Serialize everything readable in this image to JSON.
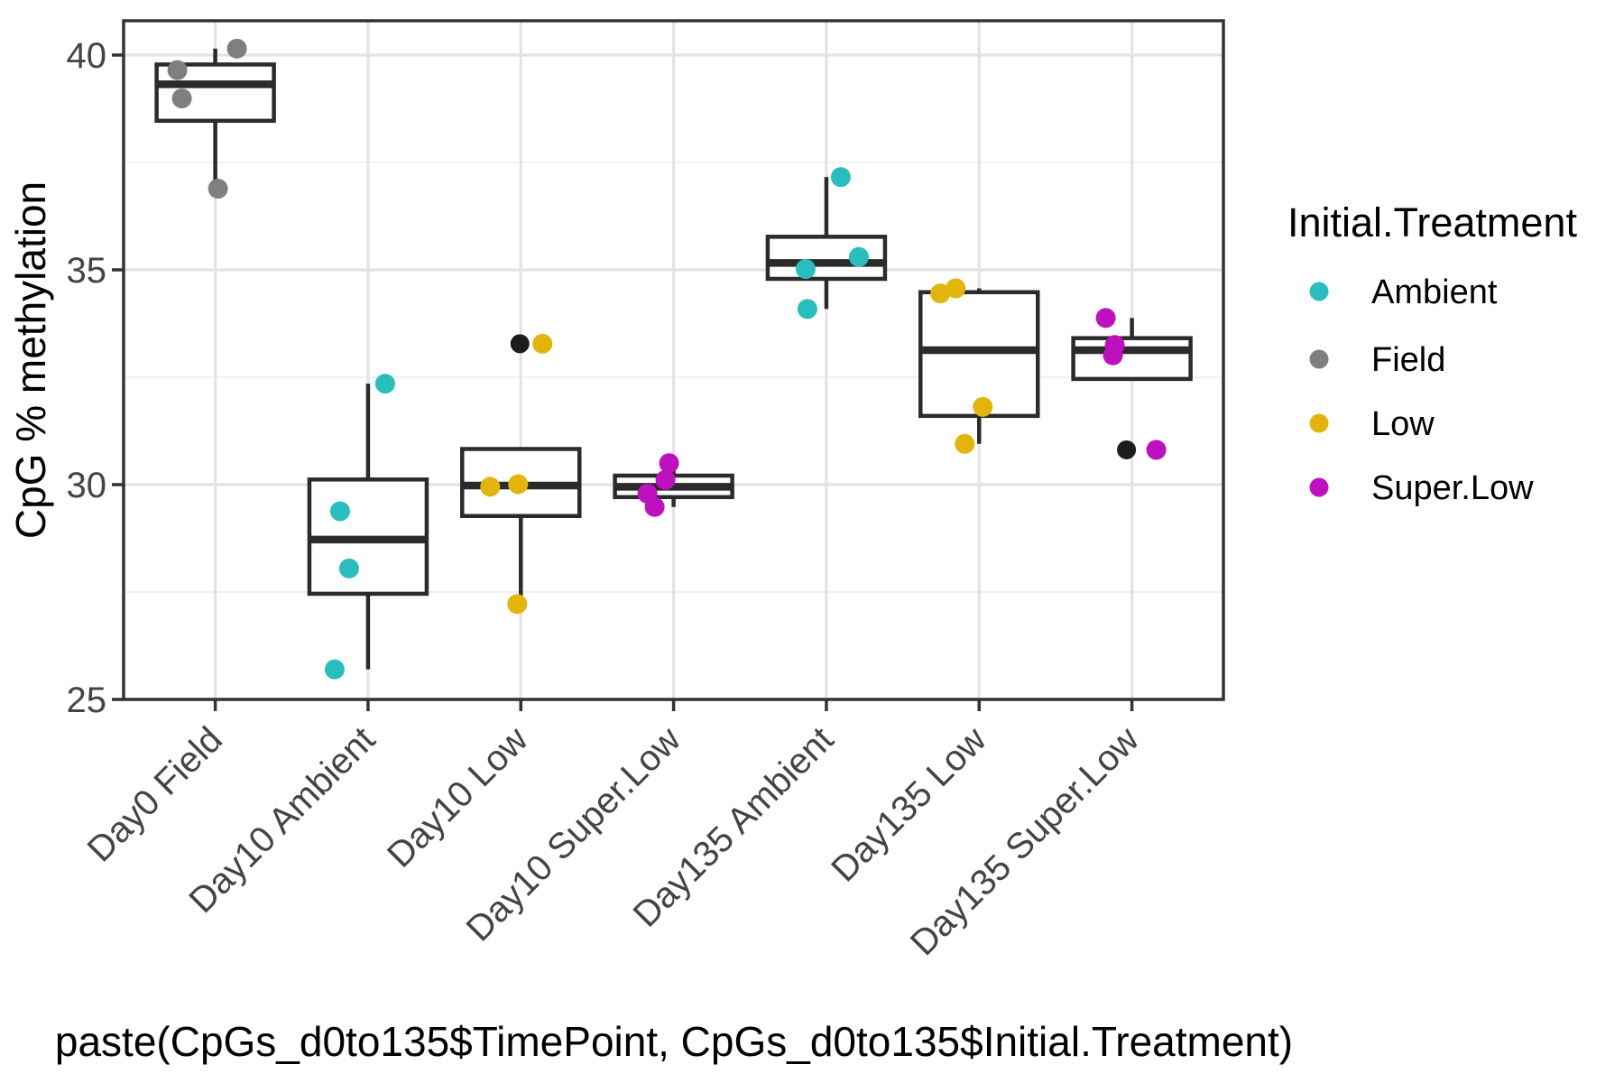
{
  "y_axis": {
    "title": "CpG % methylation",
    "tick_labels": [
      "25",
      "30",
      "35",
      "40"
    ],
    "tick_values": [
      25,
      30,
      35,
      40
    ],
    "minor_values": [
      27.5,
      32.5,
      37.5
    ],
    "range": [
      24.98,
      40.8
    ]
  },
  "x_axis": {
    "title": "paste(CpGs_d0to135$TimePoint, CpGs_d0to135$Initial.Treatment)",
    "categories": [
      "Day0 Field",
      "Day10 Ambient",
      "Day10 Low",
      "Day10 Super.Low",
      "Day135 Ambient",
      "Day135 Low",
      "Day135 Super.Low"
    ]
  },
  "legend": {
    "title": "Initial.Treatment",
    "entries": [
      {
        "label": "Ambient",
        "color": "#29BEBE"
      },
      {
        "label": "Field",
        "color": "#7F7F7F"
      },
      {
        "label": "Low",
        "color": "#E3B50C"
      },
      {
        "label": "Super.Low",
        "color": "#BF10BF"
      }
    ]
  },
  "colors": {
    "Ambient": "#29BEBE",
    "Field": "#7F7F7F",
    "Low": "#E3B50C",
    "Super.Low": "#BF10BF",
    "outlier": "#1C1C1C",
    "box_stroke": "#2B2B2B",
    "grid_major": "#E3E3E3",
    "grid_minor": "#EFEFEF",
    "panel_border": "#333333"
  },
  "chart_data": {
    "type": "boxplot",
    "title": "",
    "xlabel": "paste(CpGs_d0to135$TimePoint, CpGs_d0to135$Initial.Treatment)",
    "ylabel": "CpG % methylation",
    "ylim": [
      24.98,
      40.8
    ],
    "grid": true,
    "legend_position": "right",
    "categories": [
      "Day0 Field",
      "Day10 Ambient",
      "Day10 Low",
      "Day10 Super.Low",
      "Day135 Ambient",
      "Day135 Low",
      "Day135 Super.Low"
    ],
    "groups": [
      {
        "category": "Day0 Field",
        "treatment": "Field",
        "box": {
          "q1": 38.47,
          "median": 39.32,
          "q3": 39.78,
          "whisker_low": 36.89,
          "whisker_high": 40.15
        },
        "outliers": [],
        "points": [
          {
            "value": 40.15,
            "dx": 24
          },
          {
            "value": 39.65,
            "dx": -42
          },
          {
            "value": 38.99,
            "dx": -37
          },
          {
            "value": 36.89,
            "dx": 3
          }
        ]
      },
      {
        "category": "Day10 Ambient",
        "treatment": "Ambient",
        "box": {
          "q1": 27.46,
          "median": 28.72,
          "q3": 30.12,
          "whisker_low": 25.7,
          "whisker_high": 32.35
        },
        "outliers": [],
        "points": [
          {
            "value": 32.35,
            "dx": 19
          },
          {
            "value": 29.38,
            "dx": -31
          },
          {
            "value": 28.05,
            "dx": -21
          },
          {
            "value": 25.7,
            "dx": -37
          }
        ]
      },
      {
        "category": "Day10 Low",
        "treatment": "Low",
        "box": {
          "q1": 29.27,
          "median": 29.98,
          "q3": 30.83,
          "whisker_low": 27.22,
          "whisker_high": 30.01
        },
        "outliers": [
          {
            "value": 33.28,
            "dx": -1
          }
        ],
        "points": [
          {
            "value": 33.28,
            "dx": 24
          },
          {
            "value": 30.01,
            "dx": -3
          },
          {
            "value": 29.95,
            "dx": -34
          },
          {
            "value": 27.22,
            "dx": -4
          }
        ]
      },
      {
        "category": "Day10 Super.Low",
        "treatment": "Super.Low",
        "box": {
          "q1": 29.71,
          "median": 29.95,
          "q3": 30.21,
          "whisker_low": 29.48,
          "whisker_high": 30.5
        },
        "outliers": [],
        "points": [
          {
            "value": 30.5,
            "dx": -5
          },
          {
            "value": 30.11,
            "dx": -9
          },
          {
            "value": 29.79,
            "dx": -29
          },
          {
            "value": 29.48,
            "dx": -21
          }
        ]
      },
      {
        "category": "Day135 Ambient",
        "treatment": "Ambient",
        "box": {
          "q1": 34.79,
          "median": 35.16,
          "q3": 35.77,
          "whisker_low": 34.09,
          "whisker_high": 37.16
        },
        "outliers": [],
        "points": [
          {
            "value": 37.16,
            "dx": 16
          },
          {
            "value": 35.3,
            "dx": 36
          },
          {
            "value": 35.02,
            "dx": -23
          },
          {
            "value": 34.09,
            "dx": -21
          }
        ]
      },
      {
        "category": "Day135 Low",
        "treatment": "Low",
        "box": {
          "q1": 31.6,
          "median": 33.13,
          "q3": 34.48,
          "whisker_low": 30.95,
          "whisker_high": 34.57
        },
        "outliers": [],
        "points": [
          {
            "value": 34.57,
            "dx": -26
          },
          {
            "value": 34.45,
            "dx": -43
          },
          {
            "value": 31.81,
            "dx": 4
          },
          {
            "value": 30.95,
            "dx": -16
          }
        ]
      },
      {
        "category": "Day135 Super.Low",
        "treatment": "Super.Low",
        "box": {
          "q1": 32.46,
          "median": 33.13,
          "q3": 33.41,
          "whisker_low": 33.01,
          "whisker_high": 33.88
        },
        "outliers": [
          {
            "value": 30.81,
            "dx": -6
          }
        ],
        "points": [
          {
            "value": 33.88,
            "dx": -29
          },
          {
            "value": 33.25,
            "dx": -19
          },
          {
            "value": 33.01,
            "dx": -21
          },
          {
            "value": 30.81,
            "dx": 27
          }
        ]
      }
    ]
  }
}
